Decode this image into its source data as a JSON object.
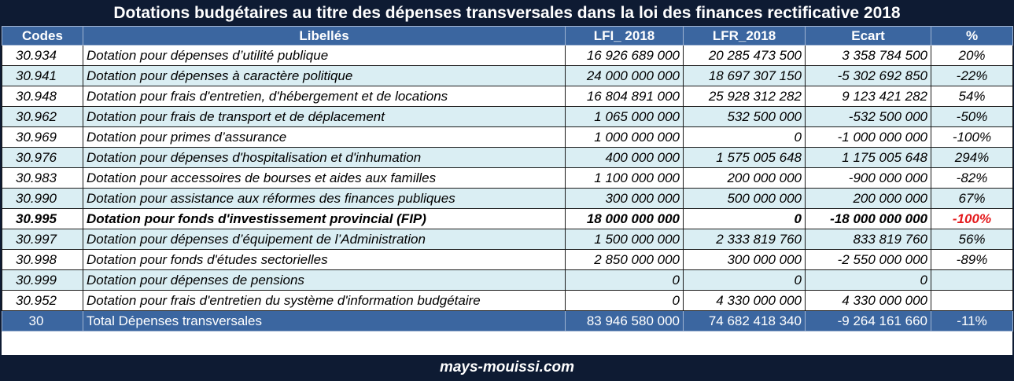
{
  "title": "Dotations budgétaires au titre des dépenses transversales dans la loi des finances rectificative 2018",
  "headers": [
    "Codes",
    "Libellés",
    "LFI_ 2018",
    "LFR_2018",
    "Ecart",
    "%"
  ],
  "rows": [
    {
      "code": "30.934",
      "label": "Dotation pour dépenses d’utilité publique",
      "lfi": "16 926 689 000",
      "lfr": "20 285 473 500",
      "ecart": "3 358 784 500",
      "pct": "20%"
    },
    {
      "code": "30.941",
      "label": "Dotation pour  dépenses à caractère politique",
      "lfi": "24 000 000 000",
      "lfr": "18 697 307 150",
      "ecart": "-5 302 692 850",
      "pct": "-22%"
    },
    {
      "code": "30.948",
      "label": "Dotation pour frais d'entretien, d'hébergement et de locations",
      "lfi": "16 804 891 000",
      "lfr": "25 928 312 282",
      "ecart": "9 123 421 282",
      "pct": "54%"
    },
    {
      "code": "30.962",
      "label": "Dotation pour frais de transport et de déplacement",
      "lfi": "1 065 000 000",
      "lfr": "532 500 000",
      "ecart": "-532 500 000",
      "pct": "-50%"
    },
    {
      "code": "30.969",
      "label": "Dotation pour primes d’assurance",
      "lfi": "1 000 000 000",
      "lfr": "0",
      "ecart": "-1 000 000 000",
      "pct": "-100%"
    },
    {
      "code": "30.976",
      "label": "Dotation pour dépenses d'hospitalisation et d'inhumation",
      "lfi": "400 000 000",
      "lfr": "1 575 005 648",
      "ecart": "1 175 005 648",
      "pct": "294%"
    },
    {
      "code": "30.983",
      "label": "Dotation pour  accessoires de bourses et aides aux familles",
      "lfi": "1 100 000 000",
      "lfr": "200 000 000",
      "ecart": "-900 000 000",
      "pct": "-82%"
    },
    {
      "code": "30.990",
      "label": "Dotation pour assistance aux réformes des finances publiques",
      "lfi": "300 000 000",
      "lfr": "500 000 000",
      "ecart": "200 000 000",
      "pct": "67%"
    },
    {
      "code": "30.995",
      "label": "Dotation pour fonds d'investissement provincial (FIP)",
      "lfi": "18 000 000 000",
      "lfr": "0",
      "ecart": "-18 000 000 000",
      "pct": "-100%"
    },
    {
      "code": "30.997",
      "label": "Dotation pour dépenses d’équipement de l’Administration",
      "lfi": "1 500 000 000",
      "lfr": "2 333 819 760",
      "ecart": "833 819 760",
      "pct": "56%"
    },
    {
      "code": "30.998",
      "label": "Dotation pour fonds d'études sectorielles",
      "lfi": "2 850 000 000",
      "lfr": "300 000 000",
      "ecart": "-2 550 000 000",
      "pct": "-89%"
    },
    {
      "code": "30.999",
      "label": "Dotation pour dépenses de pensions",
      "lfi": "0",
      "lfr": "0",
      "ecart": "0",
      "pct": ""
    },
    {
      "code": "30.952",
      "label": " Dotation pour frais d'entretien du système d'information budgétaire",
      "lfi": "0",
      "lfr": "4 330 000 000",
      "ecart": "4 330 000 000",
      "pct": ""
    }
  ],
  "total": {
    "code": "30",
    "label": "Total Dépenses transversales",
    "lfi": "83 946 580 000",
    "lfr": "74 682 418 340",
    "ecart": "-9 264 161 660",
    "pct": "-11%"
  },
  "footer": "mays-mouissi.com",
  "colors": {
    "title_bg": "#0e1b33",
    "header_bg": "#3b66a0",
    "row_alt_bg": "#daeef3",
    "highlight_red": "#e41a1c"
  }
}
